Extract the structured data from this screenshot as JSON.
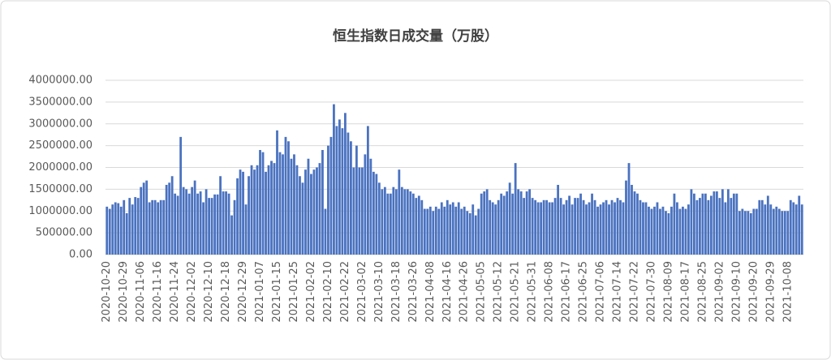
{
  "chart_data": {
    "type": "bar",
    "title": "恒生指数日成交量（万股）",
    "color": "#4a72c0",
    "categories": [
      "2020-10-20",
      null,
      null,
      null,
      null,
      null,
      "2020-10-29",
      null,
      null,
      null,
      null,
      null,
      "2020-11-06",
      null,
      null,
      null,
      null,
      null,
      "2020-11-16",
      null,
      null,
      null,
      null,
      null,
      "2020-11-24",
      null,
      null,
      null,
      null,
      null,
      "2020-12-02",
      null,
      null,
      null,
      null,
      null,
      "2020-12-10",
      null,
      null,
      null,
      null,
      null,
      "2020-12-18",
      null,
      null,
      null,
      null,
      null,
      "2020-12-29",
      null,
      null,
      null,
      null,
      null,
      "2021-01-07",
      null,
      null,
      null,
      null,
      null,
      "2021-01-15",
      null,
      null,
      null,
      null,
      null,
      "2021-01-25",
      null,
      null,
      null,
      null,
      null,
      "2021-02-02",
      null,
      null,
      null,
      null,
      null,
      "2021-02-10",
      null,
      null,
      null,
      null,
      null,
      "2021-02-22",
      null,
      null,
      null,
      null,
      null,
      "2021-03-02",
      null,
      null,
      null,
      null,
      null,
      "2021-03-10",
      null,
      null,
      null,
      null,
      null,
      "2021-03-18",
      null,
      null,
      null,
      null,
      null,
      "2021-03-26",
      null,
      null,
      null,
      null,
      null,
      "2021-04-08",
      null,
      null,
      null,
      null,
      null,
      "2021-04-16",
      null,
      null,
      null,
      null,
      null,
      "2021-04-26",
      null,
      null,
      null,
      null,
      null,
      "2021-05-05",
      null,
      null,
      null,
      null,
      null,
      "2021-05-12",
      null,
      null,
      null,
      null,
      null,
      "2021-05-21",
      null,
      null,
      null,
      null,
      null,
      "2021-05-31",
      null,
      null,
      null,
      null,
      null,
      "2021-06-08",
      null,
      null,
      null,
      null,
      null,
      "2021-06-17",
      null,
      null,
      null,
      null,
      null,
      "2021-06-25",
      null,
      null,
      null,
      null,
      null,
      "2021-07-06",
      null,
      null,
      null,
      null,
      null,
      "2021-07-14",
      null,
      null,
      null,
      null,
      null,
      "2021-07-22",
      null,
      null,
      null,
      null,
      null,
      "2021-07-30",
      null,
      null,
      null,
      null,
      null,
      "2021-08-09",
      null,
      null,
      null,
      null,
      null,
      "2021-08-17",
      null,
      null,
      null,
      null,
      null,
      "2021-08-25",
      null,
      null,
      null,
      null,
      null,
      "2021-09-02",
      null,
      null,
      null,
      null,
      null,
      "2021-09-10",
      null,
      null,
      null,
      null,
      null,
      "2021-09-20",
      null,
      null,
      null,
      null,
      null,
      "2021-09-29",
      null,
      null,
      null,
      null,
      null,
      "2021-10-08",
      null,
      null,
      null,
      null,
      null
    ],
    "values": [
      1100000,
      1050000,
      1150000,
      1200000,
      1180000,
      1100000,
      1250000,
      950000,
      1300000,
      1150000,
      1320000,
      1300000,
      1550000,
      1650000,
      1700000,
      1200000,
      1250000,
      1250000,
      1200000,
      1250000,
      1250000,
      1600000,
      1650000,
      1800000,
      1400000,
      1350000,
      2700000,
      1550000,
      1500000,
      1400000,
      1550000,
      1700000,
      1400000,
      1450000,
      1200000,
      1500000,
      1300000,
      1300000,
      1380000,
      1380000,
      1800000,
      1450000,
      1450000,
      1400000,
      900000,
      1250000,
      1750000,
      1950000,
      1900000,
      1150000,
      1800000,
      2050000,
      1950000,
      2050000,
      2400000,
      2350000,
      1900000,
      2050000,
      2150000,
      2100000,
      2850000,
      2350000,
      2300000,
      2700000,
      2600000,
      2200000,
      2300000,
      2050000,
      1800000,
      1650000,
      1950000,
      2200000,
      1850000,
      1950000,
      2000000,
      2100000,
      2400000,
      1050000,
      2500000,
      2700000,
      3450000,
      2950000,
      3100000,
      2900000,
      3250000,
      2800000,
      2600000,
      2000000,
      2500000,
      2000000,
      2000000,
      2300000,
      2950000,
      2200000,
      1900000,
      1850000,
      1650000,
      1500000,
      1550000,
      1400000,
      1400000,
      1550000,
      1500000,
      1950000,
      1550000,
      1500000,
      1500000,
      1450000,
      1400000,
      1300000,
      1350000,
      1250000,
      1050000,
      1050000,
      1100000,
      1000000,
      1100000,
      1050000,
      1200000,
      1100000,
      1250000,
      1150000,
      1200000,
      1100000,
      1200000,
      1050000,
      1100000,
      1000000,
      950000,
      1150000,
      900000,
      1050000,
      1400000,
      1450000,
      1500000,
      1250000,
      1200000,
      1150000,
      1250000,
      1400000,
      1350000,
      1450000,
      1650000,
      1400000,
      2100000,
      1500000,
      1450000,
      1300000,
      1450000,
      1500000,
      1300000,
      1250000,
      1200000,
      1200000,
      1250000,
      1250000,
      1200000,
      1200000,
      1300000,
      1600000,
      1300000,
      1150000,
      1250000,
      1350000,
      1150000,
      1300000,
      1300000,
      1400000,
      1250000,
      1150000,
      1200000,
      1400000,
      1250000,
      1100000,
      1150000,
      1200000,
      1250000,
      1150000,
      1250000,
      1200000,
      1300000,
      1250000,
      1200000,
      1700000,
      2100000,
      1600000,
      1450000,
      1400000,
      1250000,
      1200000,
      1200000,
      1100000,
      1050000,
      1100000,
      1200000,
      1050000,
      1100000,
      1000000,
      950000,
      1100000,
      1400000,
      1200000,
      1050000,
      1100000,
      1050000,
      1150000,
      1500000,
      1400000,
      1250000,
      1300000,
      1400000,
      1400000,
      1250000,
      1350000,
      1450000,
      1450000,
      1300000,
      1500000,
      1200000,
      1500000,
      1300000,
      1400000,
      1400000,
      1000000,
      1050000,
      1000000,
      1000000,
      950000,
      1050000,
      1050000,
      1250000,
      1250000,
      1150000,
      1350000,
      1150000,
      1050000,
      1100000,
      1050000,
      1000000,
      1000000,
      1000000,
      1250000,
      1200000,
      1150000,
      1350000,
      1150000
    ],
    "ylim": [
      0,
      4000000
    ],
    "yticks": [
      {
        "value": 0,
        "label": "0.00"
      },
      {
        "value": 500000,
        "label": "500000.00"
      },
      {
        "value": 1000000,
        "label": "1000000.00"
      },
      {
        "value": 1500000,
        "label": "1500000.00"
      },
      {
        "value": 2000000,
        "label": "2000000.00"
      },
      {
        "value": 2500000,
        "label": "2500000.00"
      },
      {
        "value": 3000000,
        "label": "3000000.00"
      },
      {
        "value": 3500000,
        "label": "3500000.00"
      },
      {
        "value": 4000000,
        "label": "4000000.00"
      }
    ],
    "grid": true
  }
}
